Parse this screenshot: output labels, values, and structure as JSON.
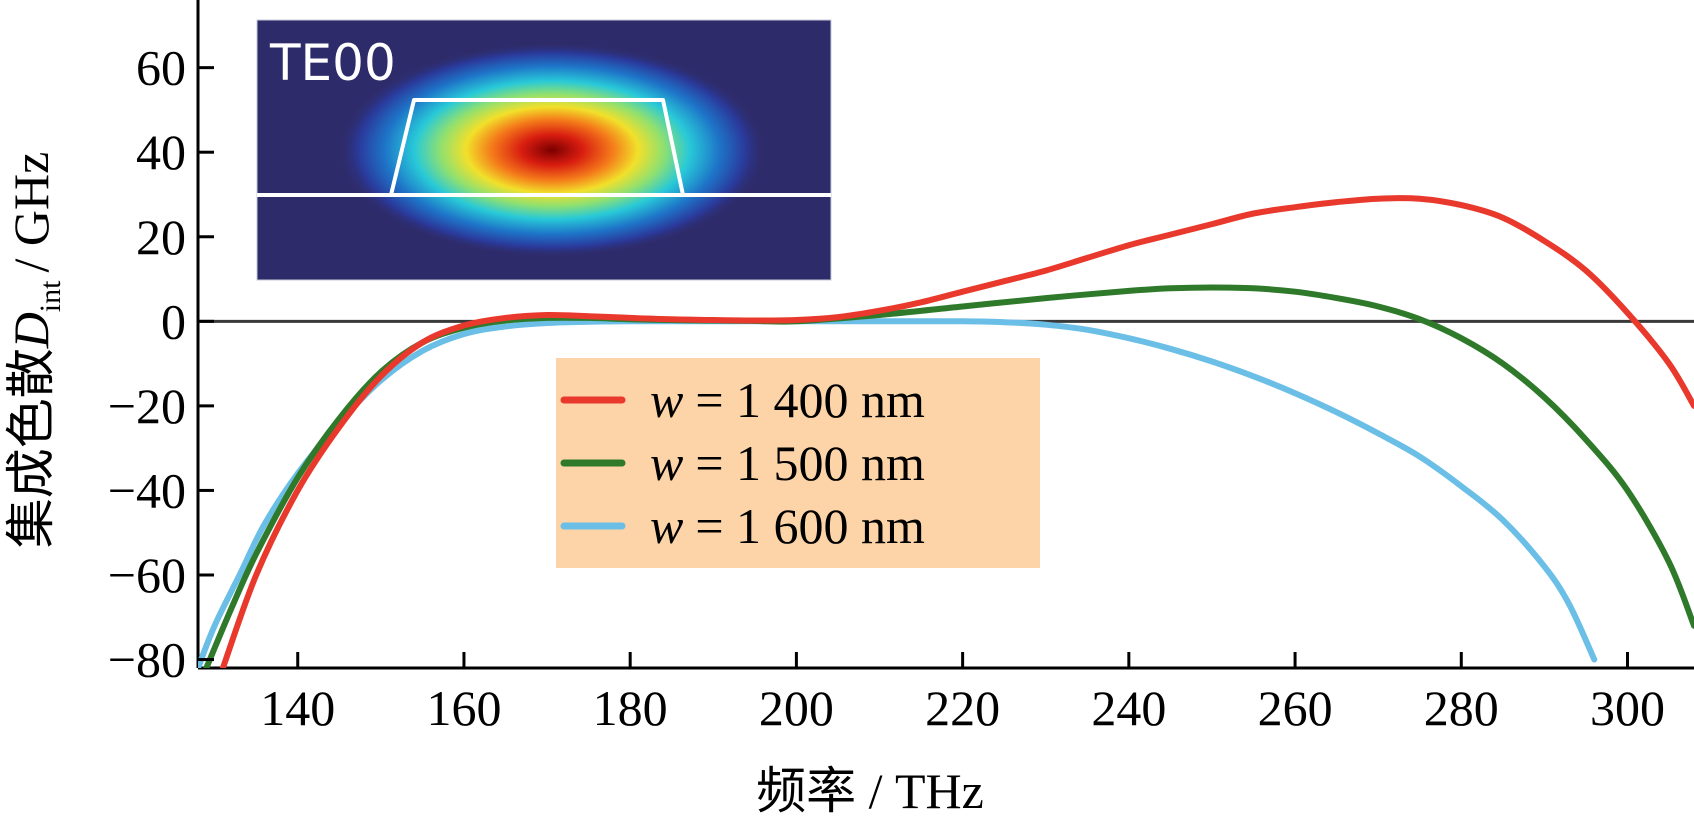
{
  "chart_data": {
    "type": "line",
    "xlabel": "频率 / THz",
    "ylabel_prefix": "集成色散",
    "ylabel_symbol": "D",
    "ylabel_subscript": "int",
    "ylabel_unit": "/ GHz",
    "xlim": [
      128,
      308
    ],
    "ylim": [
      -82,
      76
    ],
    "xticks": [
      140,
      160,
      180,
      200,
      220,
      240,
      260,
      280,
      300
    ],
    "yticks": [
      -80,
      -60,
      -40,
      -20,
      0,
      20,
      40,
      60
    ],
    "zero_line": true,
    "grid": false,
    "legend_position": "center",
    "inset": {
      "label": "TE00",
      "position": "top-left"
    },
    "series": [
      {
        "name": "w = 1 400 nm",
        "legend_var": "w",
        "legend_value": "= 1 400 nm",
        "color": "#e8392c",
        "x": [
          131,
          135,
          140,
          145,
          150,
          155,
          160,
          165,
          170,
          175,
          180,
          185,
          190,
          195,
          200,
          205,
          210,
          215,
          220,
          225,
          230,
          235,
          240,
          245,
          250,
          255,
          260,
          265,
          270,
          275,
          280,
          285,
          290,
          295,
          300,
          305,
          308
        ],
        "y": [
          -82,
          -60,
          -40,
          -25,
          -13,
          -5,
          -1,
          0.8,
          1.5,
          1.2,
          0.8,
          0.5,
          0.3,
          0.2,
          0.3,
          1,
          2.5,
          4.5,
          7,
          9.5,
          12,
          15,
          18,
          20.5,
          23,
          25.5,
          27,
          28.2,
          29,
          29,
          27.5,
          24.5,
          19,
          12,
          2,
          -10,
          -20
        ]
      },
      {
        "name": "w = 1 500 nm",
        "legend_var": "w",
        "legend_value": "= 1 500 nm",
        "color": "#2e7a2a",
        "x": [
          129,
          132,
          135,
          140,
          145,
          150,
          155,
          160,
          165,
          170,
          175,
          180,
          185,
          190,
          195,
          200,
          210,
          220,
          230,
          240,
          245,
          250,
          255,
          260,
          265,
          270,
          275,
          280,
          285,
          290,
          295,
          300,
          305,
          308
        ],
        "y": [
          -82,
          -68,
          -55,
          -37,
          -23,
          -12,
          -5,
          -1.5,
          0.2,
          0.8,
          0.8,
          0.5,
          0.3,
          0.2,
          0.1,
          0,
          1.5,
          3.5,
          5.5,
          7.2,
          7.8,
          8,
          7.8,
          7,
          5.5,
          3.5,
          0.5,
          -4,
          -10,
          -18,
          -28,
          -40,
          -57,
          -72
        ]
      },
      {
        "name": "w = 1 600 nm",
        "legend_var": "w",
        "legend_value": "= 1 600 nm",
        "color": "#6bbfe6",
        "x": [
          128,
          130,
          133,
          136,
          140,
          145,
          150,
          155,
          160,
          165,
          170,
          175,
          180,
          190,
          200,
          210,
          220,
          225,
          230,
          235,
          240,
          245,
          250,
          255,
          260,
          265,
          270,
          275,
          280,
          285,
          290,
          293,
          296
        ],
        "y": [
          -82,
          -72,
          -60,
          -48,
          -36,
          -24,
          -14,
          -7,
          -3,
          -1.2,
          -0.4,
          -0.1,
          0,
          0,
          0,
          0,
          0,
          -0.2,
          -0.8,
          -2,
          -4,
          -6.5,
          -9.5,
          -13,
          -17,
          -21.5,
          -26.5,
          -32,
          -39,
          -47,
          -58,
          -67,
          -80
        ]
      }
    ]
  }
}
